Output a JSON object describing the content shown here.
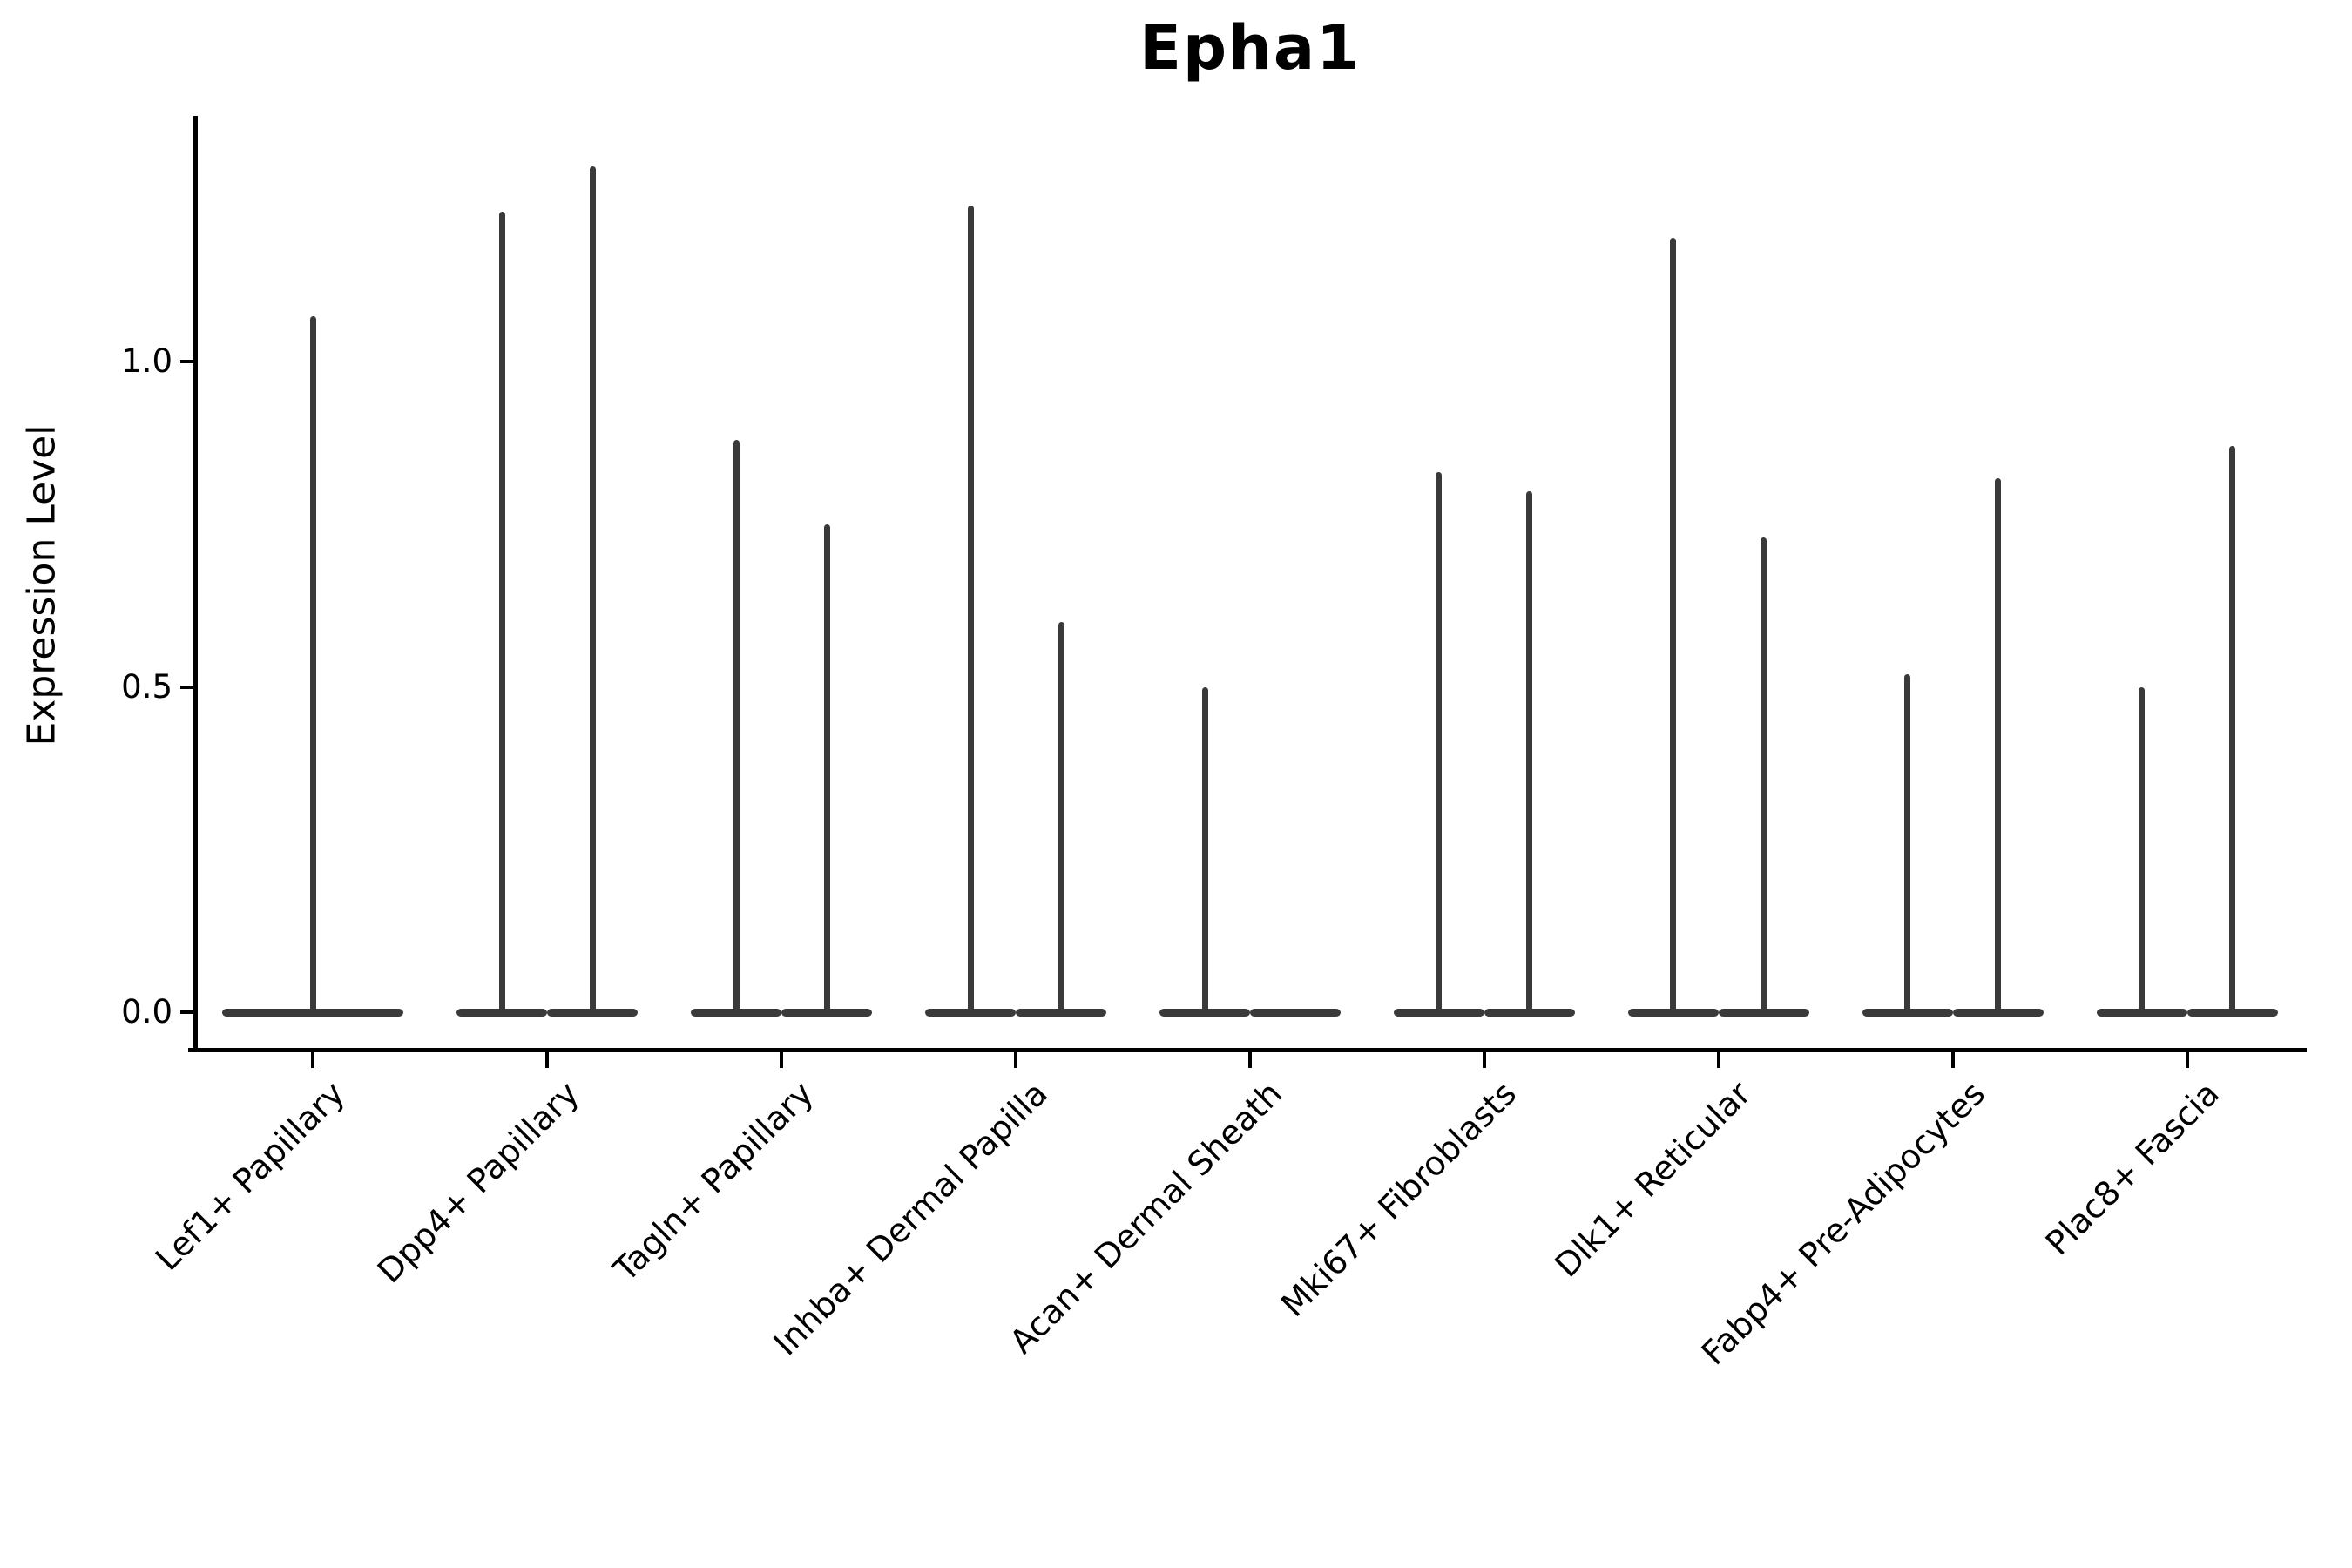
{
  "title": "Epha1",
  "y_axis": {
    "label": "Expression Level"
  },
  "chart_data": {
    "type": "violin",
    "title": "Epha1",
    "xlabel": "",
    "ylabel": "Expression Level",
    "ylim": [
      -0.06,
      1.37
    ],
    "yticks": [
      {
        "label": "0.0",
        "value": 0.0
      },
      {
        "label": "0.5",
        "value": 0.5
      },
      {
        "label": "1.0",
        "value": 1.0
      }
    ],
    "grid": false,
    "legend": false,
    "x_tick_rotation": 45,
    "violin_color": "#3a3a3a",
    "axis_color": "#000000",
    "categories": [
      {
        "label": "Lef1+ Papillary",
        "violin_maxima": [
          1.07
        ]
      },
      {
        "label": "Dpp4+ Papillary",
        "violin_maxima": [
          1.23,
          1.3
        ]
      },
      {
        "label": "Tagln+ Papillary",
        "violin_maxima": [
          0.88,
          0.75
        ]
      },
      {
        "label": "Inhba+ Dermal Papilla",
        "violin_maxima": [
          1.24,
          0.6
        ]
      },
      {
        "label": "Acan+ Dermal Sheath",
        "violin_maxima": [
          0.5,
          0.0
        ]
      },
      {
        "label": "Mki67+ Fibroblasts",
        "violin_maxima": [
          0.83,
          0.8
        ]
      },
      {
        "label": "Dlk1+ Reticular",
        "violin_maxima": [
          1.19,
          0.73
        ]
      },
      {
        "label": "Fabp4+ Pre-Adipocytes",
        "violin_maxima": [
          0.52,
          0.82
        ]
      },
      {
        "label": "Plac8+ Fascia",
        "violin_maxima": [
          0.5,
          0.87
        ]
      }
    ]
  }
}
